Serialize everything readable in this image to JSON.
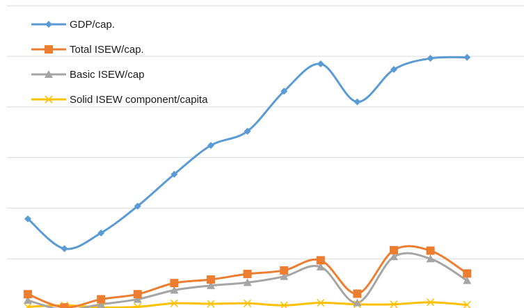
{
  "chart_data": {
    "type": "line",
    "smooth": true,
    "grid": true,
    "legend_position": "top-left",
    "y_axis_labels_visible": false,
    "x_axis_labels_visible": false,
    "ylim": [
      0,
      6
    ],
    "x": [
      1,
      2,
      3,
      4,
      5,
      6,
      7,
      8,
      9,
      10,
      11,
      12,
      13
    ],
    "series": [
      {
        "name": "GDP/cap.",
        "color": "#5B9BD5",
        "marker": "diamond",
        "values": [
          1.79,
          1.2,
          1.51,
          2.04,
          2.67,
          3.24,
          3.52,
          4.31,
          4.85,
          4.1,
          4.74,
          4.96,
          4.98
        ]
      },
      {
        "name": "Total ISEW/cap.",
        "color": "#ED7D31",
        "marker": "square",
        "values": [
          0.3,
          0.04,
          0.2,
          0.3,
          0.52,
          0.59,
          0.7,
          0.77,
          0.97,
          0.31,
          1.17,
          1.16,
          0.71
        ]
      },
      {
        "name": "Basic ISEW/cap",
        "color": "#A5A5A5",
        "marker": "triangle",
        "values": [
          0.18,
          -0.01,
          0.1,
          0.2,
          0.38,
          0.47,
          0.53,
          0.65,
          0.84,
          0.13,
          1.04,
          1.0,
          0.57
        ]
      },
      {
        "name": "Solid ISEW component/capita",
        "color": "#FFC000",
        "marker": "x",
        "values": [
          0.05,
          0.08,
          0.04,
          0.05,
          0.12,
          0.11,
          0.12,
          0.08,
          0.13,
          0.1,
          0.1,
          0.14,
          0.09
        ]
      }
    ]
  }
}
